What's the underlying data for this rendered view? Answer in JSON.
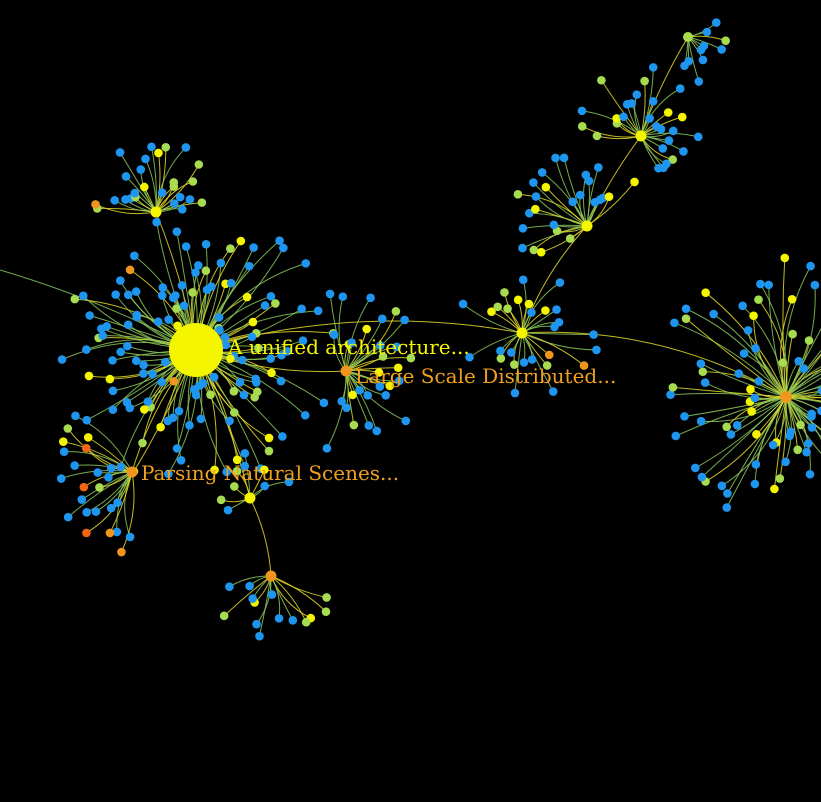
{
  "colors": {
    "background": "#000000",
    "yellow": "#f5f500",
    "lime": "#a8dc50",
    "blue": "#1e96f0",
    "orange": "#f0961e",
    "dark_orange": "#f06414",
    "edge_yellow": "#e6dc28",
    "edge_green": "#8cc85a"
  },
  "labels": {
    "unified": "A unified architecture...",
    "distributed": "Large Scale Distributed...",
    "parsing": "Parsing Natural Scenes..."
  }
}
